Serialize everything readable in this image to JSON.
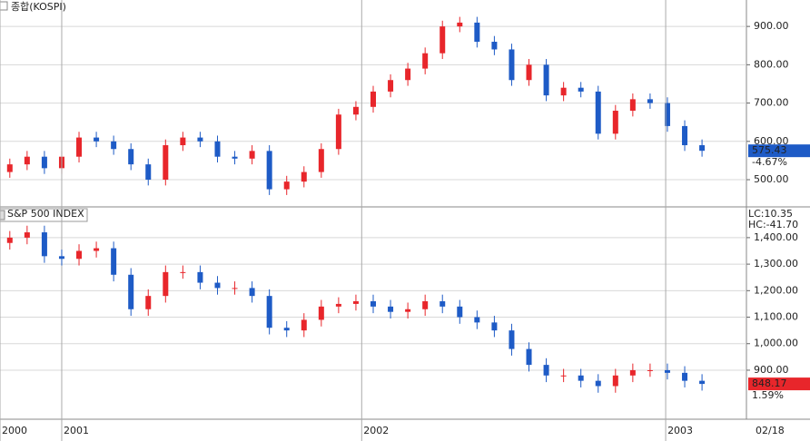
{
  "chart_data": [
    {
      "type": "candlestick",
      "title": "종합(KOSPI)",
      "x": [
        -9,
        -6,
        -3,
        0,
        3,
        6,
        9,
        12,
        15,
        18,
        21,
        24,
        27,
        30,
        33,
        36,
        39,
        42,
        45,
        48,
        51,
        54,
        57,
        60,
        63,
        66,
        69,
        72,
        75,
        78,
        81,
        84,
        87,
        90,
        93,
        96,
        99,
        102,
        105,
        108,
        111
      ],
      "open": [
        520,
        540,
        560,
        530,
        560,
        610,
        600,
        580,
        540,
        500,
        590,
        610,
        600,
        560,
        555,
        575,
        475,
        495,
        520,
        580,
        670,
        690,
        730,
        760,
        790,
        830,
        900,
        910,
        860,
        840,
        760,
        800,
        720,
        740,
        730,
        620,
        680,
        710,
        700,
        640,
        590
      ],
      "high": [
        555,
        575,
        575,
        575,
        625,
        625,
        615,
        595,
        555,
        605,
        625,
        625,
        615,
        575,
        590,
        590,
        510,
        535,
        595,
        685,
        705,
        745,
        775,
        805,
        845,
        915,
        925,
        925,
        875,
        855,
        815,
        815,
        755,
        755,
        745,
        695,
        725,
        725,
        715,
        655,
        605
      ],
      "low": [
        505,
        525,
        515,
        515,
        545,
        585,
        565,
        525,
        485,
        485,
        575,
        585,
        545,
        540,
        540,
        460,
        460,
        480,
        505,
        565,
        655,
        675,
        715,
        745,
        775,
        815,
        885,
        845,
        825,
        745,
        745,
        705,
        705,
        715,
        605,
        605,
        665,
        685,
        625,
        575,
        560
      ],
      "close": [
        540,
        560,
        530,
        560,
        610,
        600,
        580,
        540,
        500,
        590,
        610,
        600,
        560,
        555,
        575,
        475,
        495,
        520,
        580,
        670,
        690,
        730,
        760,
        790,
        830,
        900,
        910,
        860,
        840,
        760,
        800,
        720,
        740,
        730,
        620,
        680,
        710,
        700,
        640,
        590,
        575.43
      ],
      "up_color": "#e8262b",
      "down_color": "#1e5bc6",
      "xlim": [
        -10.7,
        118.7
      ],
      "ylim": [
        429,
        969
      ],
      "yticks": [
        {
          "value": 500,
          "label": "500.00"
        },
        {
          "value": 600,
          "label": "600.00"
        },
        {
          "value": 700,
          "label": "700.00"
        },
        {
          "value": 800,
          "label": "800.00"
        },
        {
          "value": 900,
          "label": "900.00"
        }
      ],
      "last_label": "575.43",
      "change_label": "-4.67%",
      "last_color": "#1e5bc6",
      "grid": true
    },
    {
      "type": "candlestick",
      "title": "S&P 500 INDEX",
      "x": [
        -9,
        -6,
        -3,
        0,
        3,
        6,
        9,
        12,
        15,
        18,
        21,
        24,
        27,
        30,
        33,
        36,
        39,
        42,
        45,
        48,
        51,
        54,
        57,
        60,
        63,
        66,
        69,
        72,
        75,
        78,
        81,
        84,
        87,
        90,
        93,
        96,
        99,
        102,
        105,
        108,
        111
      ],
      "open": [
        1380,
        1400,
        1420,
        1330,
        1320,
        1350,
        1360,
        1260,
        1130,
        1180,
        1270,
        1270,
        1230,
        1210,
        1210,
        1180,
        1060,
        1050,
        1090,
        1140,
        1150,
        1160,
        1140,
        1120,
        1130,
        1160,
        1140,
        1100,
        1080,
        1050,
        980,
        920,
        880,
        880,
        860,
        840,
        880,
        900,
        900,
        890,
        860
      ],
      "high": [
        1425,
        1445,
        1445,
        1355,
        1375,
        1385,
        1385,
        1285,
        1205,
        1295,
        1295,
        1295,
        1255,
        1235,
        1235,
        1205,
        1085,
        1115,
        1165,
        1175,
        1185,
        1185,
        1165,
        1155,
        1185,
        1185,
        1165,
        1125,
        1105,
        1075,
        1005,
        945,
        905,
        905,
        885,
        905,
        925,
        925,
        925,
        915,
        885
      ],
      "low": [
        1355,
        1375,
        1305,
        1295,
        1295,
        1325,
        1235,
        1105,
        1105,
        1155,
        1245,
        1205,
        1185,
        1185,
        1155,
        1035,
        1025,
        1025,
        1065,
        1115,
        1125,
        1115,
        1095,
        1095,
        1105,
        1115,
        1075,
        1055,
        1025,
        955,
        895,
        855,
        855,
        835,
        815,
        815,
        855,
        875,
        865,
        835,
        823
      ],
      "close": [
        1400,
        1420,
        1330,
        1320,
        1350,
        1360,
        1260,
        1130,
        1180,
        1270,
        1270,
        1230,
        1210,
        1210,
        1180,
        1060,
        1050,
        1090,
        1140,
        1150,
        1160,
        1140,
        1120,
        1130,
        1160,
        1140,
        1100,
        1080,
        1050,
        980,
        920,
        880,
        880,
        860,
        840,
        880,
        900,
        900,
        890,
        860,
        848.17
      ],
      "up_color": "#e8262b",
      "down_color": "#1e5bc6",
      "xlim": [
        -10.7,
        118.7
      ],
      "ylim": [
        715,
        1516
      ],
      "yticks": [
        {
          "value": 900,
          "label": "900.00"
        },
        {
          "value": 1000,
          "label": "1,000.00"
        },
        {
          "value": 1100,
          "label": "1,100.00"
        },
        {
          "value": 1200,
          "label": "1,200.00"
        },
        {
          "value": 1300,
          "label": "1,300.00"
        },
        {
          "value": 1400,
          "label": "1,400.00"
        }
      ],
      "xticks": [
        {
          "value": -10.7,
          "label": "2000"
        },
        {
          "value": 0,
          "label": "2001"
        },
        {
          "value": 52,
          "label": "2002"
        },
        {
          "value": 104.7,
          "label": "2003"
        }
      ],
      "x_end_label": "02/18",
      "annotations": [
        "LC:10.35",
        "HC:-41.70"
      ],
      "last_label": "848.17",
      "change_label": "1.59%",
      "last_color": "#e8262b",
      "grid": true
    }
  ]
}
